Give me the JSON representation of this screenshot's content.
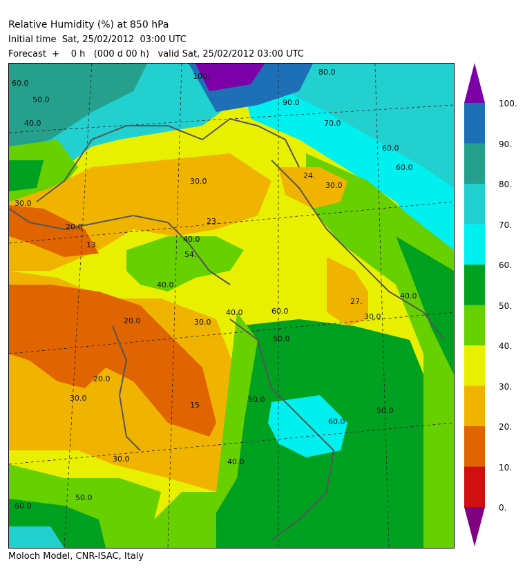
{
  "header": {
    "title": "Relative Humidity (%) at 850 hPa",
    "initial_time": "Initial time  Sat, 25/02/2012  03:00 UTC",
    "forecast": "Forecast  +    0 h   (000 d 00 h)   valid Sat, 25/02/2012 03:00 UTC"
  },
  "footer": {
    "credit": "Moloch Model, CNR-ISAC, Italy"
  },
  "legend": {
    "ticks": [
      "100.",
      "90.",
      "80.",
      "70.",
      "60.",
      "50.",
      "40.",
      "30.",
      "20.",
      "10.",
      "0."
    ],
    "colors": [
      "#7b00a8",
      "#1d6fb6",
      "#24a08c",
      "#22d0d0",
      "#00f0f0",
      "#00a020",
      "#66d000",
      "#e8f000",
      "#f0b400",
      "#e06400",
      "#d01010",
      "#800080"
    ]
  },
  "map": {
    "labels": [
      "60.0",
      "50.0",
      "40.0",
      "30.0",
      "20.0",
      "13.",
      "30.0",
      "23.",
      "40.0",
      "54.",
      "40.0",
      "30.0",
      "20.0",
      "30.0",
      "20.0",
      "30.0",
      "15",
      "40.0",
      "50.0",
      "40.0",
      "24.",
      "30.0",
      "60.0",
      "70.0",
      "80.0",
      "90.0",
      "100.",
      "60.0",
      "27.",
      "30.0",
      "40.0",
      "60.0",
      "50.0",
      "60.0",
      "50.0",
      "50.0",
      "60.0"
    ]
  }
}
